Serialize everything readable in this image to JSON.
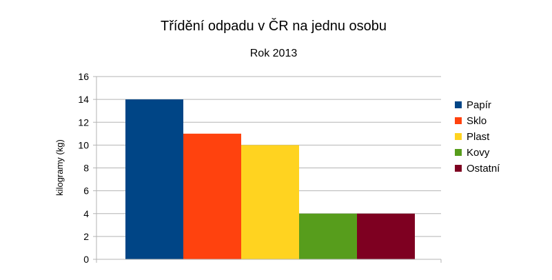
{
  "chart_data": {
    "type": "bar",
    "title": "Třídění odpadu v ČR na jednu osobu",
    "subtitle": "Rok 2013",
    "xlabel": "",
    "ylabel": "kilogramy (kg)",
    "ylim": [
      0,
      16
    ],
    "ytick_step": 2,
    "grid": true,
    "legend_position": "right",
    "series": [
      {
        "name": "Papír",
        "value": 14,
        "color": "#004586"
      },
      {
        "name": "Sklo",
        "value": 11,
        "color": "#ff420e"
      },
      {
        "name": "Plast",
        "value": 10,
        "color": "#ffd320"
      },
      {
        "name": "Kovy",
        "value": 4,
        "color": "#579d1c"
      },
      {
        "name": "Ostatní",
        "value": 4,
        "color": "#7e0021"
      }
    ]
  }
}
